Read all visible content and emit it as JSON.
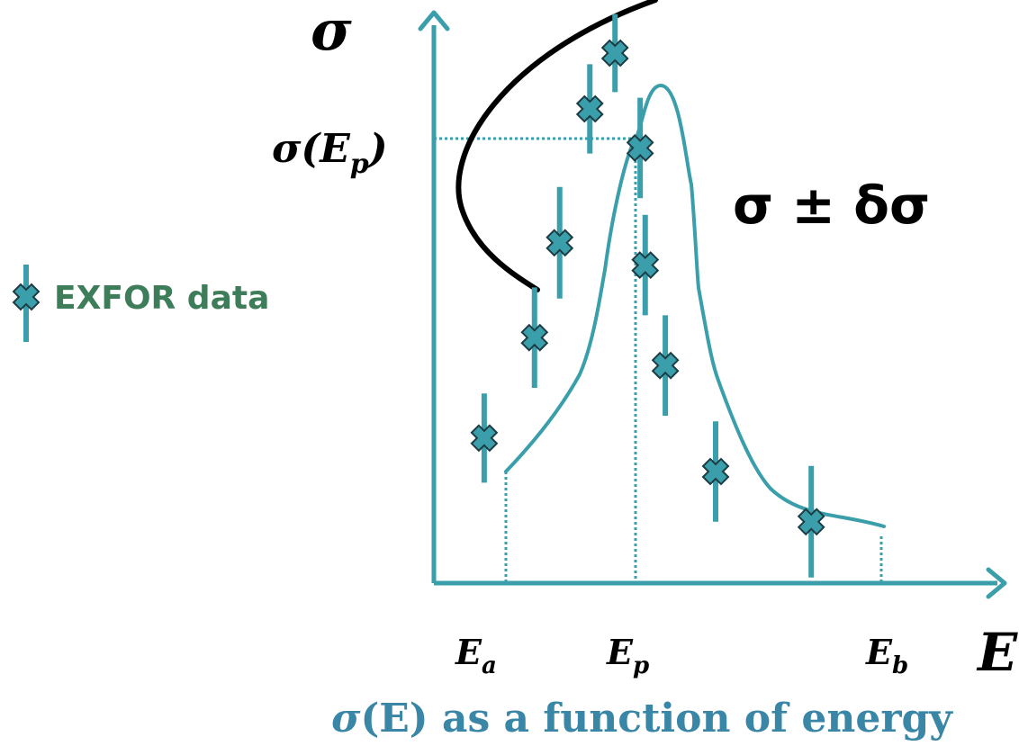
{
  "axis": {
    "y_symbol": "σ",
    "x_symbol": "E"
  },
  "labels": {
    "sigma_ep": "σ(E",
    "sigma_ep_sub": "p",
    "sigma_ep_close": ")",
    "uncertainty": "σ ± δσ",
    "ea": "E",
    "ea_sub": "a",
    "ep": "E",
    "ep_sub": "p",
    "eb": "E",
    "eb_sub": "b"
  },
  "legend": {
    "label": "EXFOR data"
  },
  "caption": {
    "sigma": "σ",
    "rest": "(E) as a function of energy"
  },
  "colors": {
    "teal": "#3a9fab",
    "marker_edge": "#1d3c44",
    "legend_text": "#3e7d5a",
    "caption": "#3a86a6",
    "black": "#000000"
  },
  "chart_data": {
    "type": "scatter",
    "points": [
      {
        "x": 0.1,
        "y": 0.26
      },
      {
        "x": 0.2,
        "y": 0.44
      },
      {
        "x": 0.25,
        "y": 0.61
      },
      {
        "x": 0.31,
        "y": 0.85
      },
      {
        "x": 0.36,
        "y": 0.95
      },
      {
        "x": 0.41,
        "y": 0.78
      },
      {
        "x": 0.42,
        "y": 0.57
      },
      {
        "x": 0.46,
        "y": 0.39
      },
      {
        "x": 0.56,
        "y": 0.2
      },
      {
        "x": 0.75,
        "y": 0.11
      }
    ],
    "errors": [
      0.08,
      0.09,
      0.1,
      0.08,
      0.07,
      0.09,
      0.09,
      0.09,
      0.09,
      0.1
    ]
  }
}
